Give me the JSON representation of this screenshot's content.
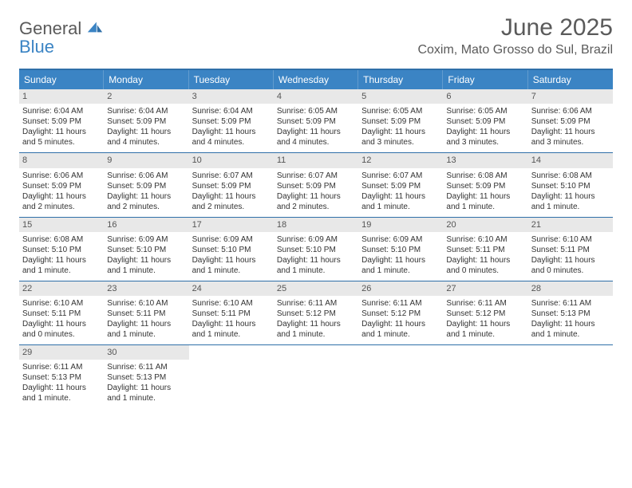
{
  "logo": {
    "line1": "General",
    "line2": "Blue"
  },
  "title": "June 2025",
  "location": "Coxim, Mato Grosso do Sul, Brazil",
  "colors": {
    "header_bg": "#3b84c4",
    "border": "#2f6fa8",
    "daynum_bg": "#e8e8e8",
    "text": "#333333",
    "muted": "#5a5a5a",
    "white": "#ffffff"
  },
  "day_headers": [
    "Sunday",
    "Monday",
    "Tuesday",
    "Wednesday",
    "Thursday",
    "Friday",
    "Saturday"
  ],
  "weeks": [
    [
      {
        "n": "1",
        "sr": "Sunrise: 6:04 AM",
        "ss": "Sunset: 5:09 PM",
        "d1": "Daylight: 11 hours",
        "d2": "and 5 minutes."
      },
      {
        "n": "2",
        "sr": "Sunrise: 6:04 AM",
        "ss": "Sunset: 5:09 PM",
        "d1": "Daylight: 11 hours",
        "d2": "and 4 minutes."
      },
      {
        "n": "3",
        "sr": "Sunrise: 6:04 AM",
        "ss": "Sunset: 5:09 PM",
        "d1": "Daylight: 11 hours",
        "d2": "and 4 minutes."
      },
      {
        "n": "4",
        "sr": "Sunrise: 6:05 AM",
        "ss": "Sunset: 5:09 PM",
        "d1": "Daylight: 11 hours",
        "d2": "and 4 minutes."
      },
      {
        "n": "5",
        "sr": "Sunrise: 6:05 AM",
        "ss": "Sunset: 5:09 PM",
        "d1": "Daylight: 11 hours",
        "d2": "and 3 minutes."
      },
      {
        "n": "6",
        "sr": "Sunrise: 6:05 AM",
        "ss": "Sunset: 5:09 PM",
        "d1": "Daylight: 11 hours",
        "d2": "and 3 minutes."
      },
      {
        "n": "7",
        "sr": "Sunrise: 6:06 AM",
        "ss": "Sunset: 5:09 PM",
        "d1": "Daylight: 11 hours",
        "d2": "and 3 minutes."
      }
    ],
    [
      {
        "n": "8",
        "sr": "Sunrise: 6:06 AM",
        "ss": "Sunset: 5:09 PM",
        "d1": "Daylight: 11 hours",
        "d2": "and 2 minutes."
      },
      {
        "n": "9",
        "sr": "Sunrise: 6:06 AM",
        "ss": "Sunset: 5:09 PM",
        "d1": "Daylight: 11 hours",
        "d2": "and 2 minutes."
      },
      {
        "n": "10",
        "sr": "Sunrise: 6:07 AM",
        "ss": "Sunset: 5:09 PM",
        "d1": "Daylight: 11 hours",
        "d2": "and 2 minutes."
      },
      {
        "n": "11",
        "sr": "Sunrise: 6:07 AM",
        "ss": "Sunset: 5:09 PM",
        "d1": "Daylight: 11 hours",
        "d2": "and 2 minutes."
      },
      {
        "n": "12",
        "sr": "Sunrise: 6:07 AM",
        "ss": "Sunset: 5:09 PM",
        "d1": "Daylight: 11 hours",
        "d2": "and 1 minute."
      },
      {
        "n": "13",
        "sr": "Sunrise: 6:08 AM",
        "ss": "Sunset: 5:09 PM",
        "d1": "Daylight: 11 hours",
        "d2": "and 1 minute."
      },
      {
        "n": "14",
        "sr": "Sunrise: 6:08 AM",
        "ss": "Sunset: 5:10 PM",
        "d1": "Daylight: 11 hours",
        "d2": "and 1 minute."
      }
    ],
    [
      {
        "n": "15",
        "sr": "Sunrise: 6:08 AM",
        "ss": "Sunset: 5:10 PM",
        "d1": "Daylight: 11 hours",
        "d2": "and 1 minute."
      },
      {
        "n": "16",
        "sr": "Sunrise: 6:09 AM",
        "ss": "Sunset: 5:10 PM",
        "d1": "Daylight: 11 hours",
        "d2": "and 1 minute."
      },
      {
        "n": "17",
        "sr": "Sunrise: 6:09 AM",
        "ss": "Sunset: 5:10 PM",
        "d1": "Daylight: 11 hours",
        "d2": "and 1 minute."
      },
      {
        "n": "18",
        "sr": "Sunrise: 6:09 AM",
        "ss": "Sunset: 5:10 PM",
        "d1": "Daylight: 11 hours",
        "d2": "and 1 minute."
      },
      {
        "n": "19",
        "sr": "Sunrise: 6:09 AM",
        "ss": "Sunset: 5:10 PM",
        "d1": "Daylight: 11 hours",
        "d2": "and 1 minute."
      },
      {
        "n": "20",
        "sr": "Sunrise: 6:10 AM",
        "ss": "Sunset: 5:11 PM",
        "d1": "Daylight: 11 hours",
        "d2": "and 0 minutes."
      },
      {
        "n": "21",
        "sr": "Sunrise: 6:10 AM",
        "ss": "Sunset: 5:11 PM",
        "d1": "Daylight: 11 hours",
        "d2": "and 0 minutes."
      }
    ],
    [
      {
        "n": "22",
        "sr": "Sunrise: 6:10 AM",
        "ss": "Sunset: 5:11 PM",
        "d1": "Daylight: 11 hours",
        "d2": "and 0 minutes."
      },
      {
        "n": "23",
        "sr": "Sunrise: 6:10 AM",
        "ss": "Sunset: 5:11 PM",
        "d1": "Daylight: 11 hours",
        "d2": "and 1 minute."
      },
      {
        "n": "24",
        "sr": "Sunrise: 6:10 AM",
        "ss": "Sunset: 5:11 PM",
        "d1": "Daylight: 11 hours",
        "d2": "and 1 minute."
      },
      {
        "n": "25",
        "sr": "Sunrise: 6:11 AM",
        "ss": "Sunset: 5:12 PM",
        "d1": "Daylight: 11 hours",
        "d2": "and 1 minute."
      },
      {
        "n": "26",
        "sr": "Sunrise: 6:11 AM",
        "ss": "Sunset: 5:12 PM",
        "d1": "Daylight: 11 hours",
        "d2": "and 1 minute."
      },
      {
        "n": "27",
        "sr": "Sunrise: 6:11 AM",
        "ss": "Sunset: 5:12 PM",
        "d1": "Daylight: 11 hours",
        "d2": "and 1 minute."
      },
      {
        "n": "28",
        "sr": "Sunrise: 6:11 AM",
        "ss": "Sunset: 5:13 PM",
        "d1": "Daylight: 11 hours",
        "d2": "and 1 minute."
      }
    ],
    [
      {
        "n": "29",
        "sr": "Sunrise: 6:11 AM",
        "ss": "Sunset: 5:13 PM",
        "d1": "Daylight: 11 hours",
        "d2": "and 1 minute."
      },
      {
        "n": "30",
        "sr": "Sunrise: 6:11 AM",
        "ss": "Sunset: 5:13 PM",
        "d1": "Daylight: 11 hours",
        "d2": "and 1 minute."
      },
      null,
      null,
      null,
      null,
      null
    ]
  ]
}
